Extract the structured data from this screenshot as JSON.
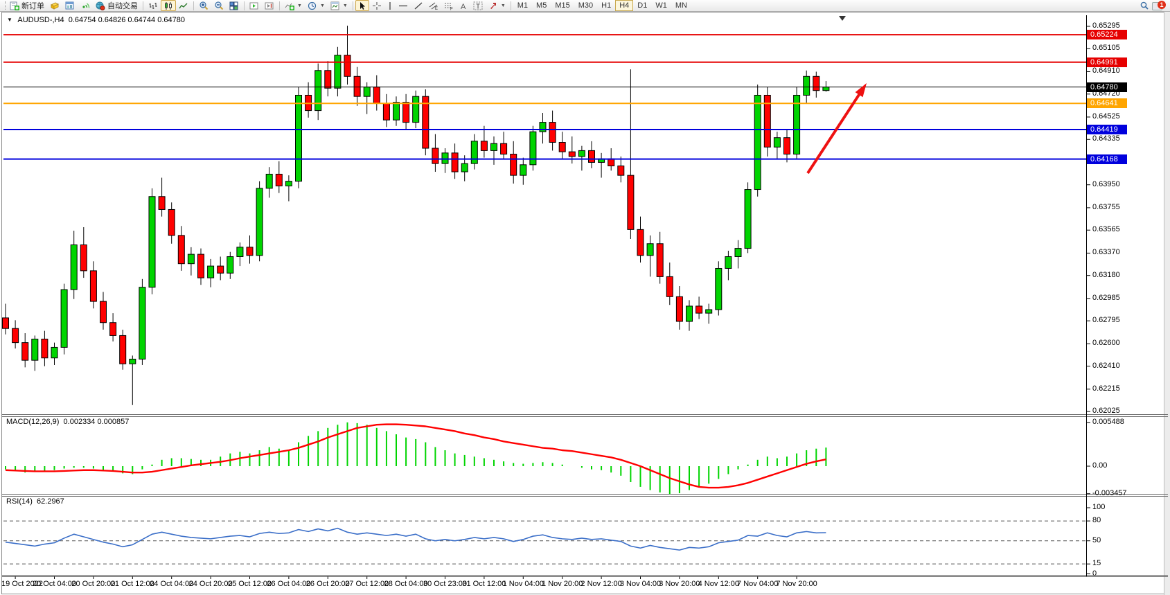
{
  "toolbar": {
    "new_order_label": "新订单",
    "autotrading_label": "自动交易",
    "timeframes": [
      "M1",
      "M5",
      "M15",
      "M30",
      "H1",
      "H4",
      "D1",
      "W1",
      "MN"
    ],
    "active_timeframe": "H4",
    "notification_count": "1"
  },
  "title": {
    "symbol": "AUDUSD-,H4",
    "open": "0.64754",
    "high": "0.64826",
    "low": "0.64744",
    "close": "0.64780"
  },
  "price_axis": {
    "ticks": [
      "0.65295",
      "0.65105",
      "0.64910",
      "0.64720",
      "0.64525",
      "0.64335",
      "0.64140",
      "0.63950",
      "0.63755",
      "0.63565",
      "0.63370",
      "0.63180",
      "0.62985",
      "0.62795",
      "0.62600",
      "0.62410",
      "0.62215",
      "0.62025"
    ]
  },
  "time_axis": {
    "labels": [
      "19 Oct 2022",
      "20 Oct 04:00",
      "20 Oct 20:00",
      "21 Oct 12:00",
      "24 Oct 04:00",
      "24 Oct 20:00",
      "25 Oct 12:00",
      "26 Oct 04:00",
      "26 Oct 20:00",
      "27 Oct 12:00",
      "28 Oct 04:00",
      "30 Oct 23:00",
      "31 Oct 12:00",
      "1 Nov 04:00",
      "1 Nov 20:00",
      "2 Nov 12:00",
      "3 Nov 04:00",
      "3 Nov 20:00",
      "4 Nov 12:00",
      "7 Nov 04:00",
      "7 Nov 20:00"
    ]
  },
  "hlines": [
    {
      "price": 0.65224,
      "label": "0.65224",
      "color": "#e60000",
      "width": 2
    },
    {
      "price": 0.64991,
      "label": "0.64991",
      "color": "#e60000",
      "width": 2
    },
    {
      "price": 0.64641,
      "label": "0.64641",
      "color": "#ffa500",
      "width": 2
    },
    {
      "price": 0.64419,
      "label": "0.64419",
      "color": "#0000dd",
      "width": 2
    },
    {
      "price": 0.64168,
      "label": "0.64168",
      "color": "#0000dd",
      "width": 2
    }
  ],
  "current_price": {
    "value": 0.6478,
    "label": "0.64780",
    "color": "#000000"
  },
  "macd": {
    "label": "MACD(12,26,9)",
    "values_text": "0.002334 0.000857",
    "axis_labels": [
      "0.005488",
      "0.00",
      "-0.003457"
    ]
  },
  "rsi": {
    "label": "RSI(14)",
    "value_text": "62.2967",
    "axis_labels": [
      "100",
      "80",
      "50",
      "15",
      "0"
    ],
    "levels": [
      80,
      50,
      15
    ]
  },
  "annotation_arrow": {
    "color": "#ee1111"
  },
  "chart_data": [
    {
      "type": "candlestick",
      "symbol": "AUDUSD",
      "timeframe": "H4",
      "title": "AUDUSD-,H4",
      "x_start": "19 Oct 2022 00:00",
      "ylim": [
        0.62025,
        0.65295
      ],
      "up_color": "#00d400",
      "down_color": "#ff0000",
      "outline_color": "#000000",
      "candles": [
        [
          0.6282,
          0.6294,
          0.6268,
          0.6273
        ],
        [
          0.6273,
          0.628,
          0.6256,
          0.6261
        ],
        [
          0.6261,
          0.6269,
          0.624,
          0.6246
        ],
        [
          0.6246,
          0.6267,
          0.6237,
          0.6264
        ],
        [
          0.6264,
          0.6271,
          0.6241,
          0.6248
        ],
        [
          0.6248,
          0.6261,
          0.6242,
          0.6257
        ],
        [
          0.6257,
          0.6311,
          0.6251,
          0.6306
        ],
        [
          0.6306,
          0.6356,
          0.6298,
          0.6344
        ],
        [
          0.6344,
          0.6359,
          0.6316,
          0.6322
        ],
        [
          0.6322,
          0.633,
          0.629,
          0.6296
        ],
        [
          0.6296,
          0.6304,
          0.6272,
          0.6278
        ],
        [
          0.6278,
          0.6286,
          0.6262,
          0.6267
        ],
        [
          0.6267,
          0.6272,
          0.6238,
          0.6243
        ],
        [
          0.6243,
          0.625,
          0.6208,
          0.6247
        ],
        [
          0.6247,
          0.6315,
          0.6242,
          0.6308
        ],
        [
          0.6308,
          0.6392,
          0.6302,
          0.6385
        ],
        [
          0.6385,
          0.6401,
          0.6368,
          0.6374
        ],
        [
          0.6374,
          0.638,
          0.6345,
          0.6352
        ],
        [
          0.6352,
          0.636,
          0.6322,
          0.6328
        ],
        [
          0.6328,
          0.6342,
          0.6318,
          0.6336
        ],
        [
          0.6336,
          0.6341,
          0.631,
          0.6316
        ],
        [
          0.6316,
          0.6332,
          0.6308,
          0.6326
        ],
        [
          0.6326,
          0.6334,
          0.6314,
          0.632
        ],
        [
          0.632,
          0.6338,
          0.6315,
          0.6334
        ],
        [
          0.6334,
          0.6346,
          0.6326,
          0.6342
        ],
        [
          0.6342,
          0.6352,
          0.6328,
          0.6335
        ],
        [
          0.6335,
          0.6398,
          0.633,
          0.6392
        ],
        [
          0.6392,
          0.641,
          0.6384,
          0.6404
        ],
        [
          0.6404,
          0.6415,
          0.6388,
          0.6394
        ],
        [
          0.6394,
          0.6403,
          0.6381,
          0.6398
        ],
        [
          0.6398,
          0.6478,
          0.6392,
          0.6471
        ],
        [
          0.6471,
          0.6482,
          0.6452,
          0.6458
        ],
        [
          0.6458,
          0.6498,
          0.645,
          0.6492
        ],
        [
          0.6492,
          0.65,
          0.647,
          0.6477
        ],
        [
          0.6477,
          0.6512,
          0.647,
          0.6505
        ],
        [
          0.6505,
          0.653,
          0.648,
          0.6487
        ],
        [
          0.6487,
          0.6495,
          0.6462,
          0.647
        ],
        [
          0.647,
          0.6482,
          0.6455,
          0.6478
        ],
        [
          0.6478,
          0.6488,
          0.6458,
          0.6464
        ],
        [
          0.6464,
          0.6472,
          0.6444,
          0.645
        ],
        [
          0.645,
          0.647,
          0.6445,
          0.6465
        ],
        [
          0.6465,
          0.6472,
          0.6442,
          0.6448
        ],
        [
          0.6448,
          0.6475,
          0.6443,
          0.647
        ],
        [
          0.647,
          0.6476,
          0.642,
          0.6426
        ],
        [
          0.6426,
          0.6438,
          0.6406,
          0.6413
        ],
        [
          0.6413,
          0.6426,
          0.6405,
          0.6422
        ],
        [
          0.6422,
          0.643,
          0.64,
          0.6406
        ],
        [
          0.6406,
          0.642,
          0.6398,
          0.6413
        ],
        [
          0.6413,
          0.6438,
          0.6408,
          0.6432
        ],
        [
          0.6432,
          0.6445,
          0.6418,
          0.6424
        ],
        [
          0.6424,
          0.6436,
          0.6412,
          0.643
        ],
        [
          0.643,
          0.644,
          0.6417,
          0.6421
        ],
        [
          0.6421,
          0.6432,
          0.6396,
          0.6403
        ],
        [
          0.6403,
          0.6418,
          0.6395,
          0.6412
        ],
        [
          0.6412,
          0.6445,
          0.6407,
          0.644
        ],
        [
          0.644,
          0.6456,
          0.643,
          0.6448
        ],
        [
          0.6448,
          0.6458,
          0.6424,
          0.6431
        ],
        [
          0.6431,
          0.644,
          0.6417,
          0.6423
        ],
        [
          0.6423,
          0.6436,
          0.6413,
          0.6419
        ],
        [
          0.6419,
          0.6428,
          0.6407,
          0.6424
        ],
        [
          0.6424,
          0.6432,
          0.6409,
          0.6414
        ],
        [
          0.6414,
          0.6422,
          0.6401,
          0.6417
        ],
        [
          0.6417,
          0.6426,
          0.6407,
          0.6411
        ],
        [
          0.6411,
          0.6419,
          0.6397,
          0.6403
        ],
        [
          0.6403,
          0.6493,
          0.6349,
          0.6357
        ],
        [
          0.6357,
          0.6368,
          0.6329,
          0.6335
        ],
        [
          0.6335,
          0.6352,
          0.6317,
          0.6345
        ],
        [
          0.6345,
          0.6355,
          0.6311,
          0.6317
        ],
        [
          0.6317,
          0.6329,
          0.6293,
          0.63
        ],
        [
          0.63,
          0.6309,
          0.6272,
          0.6279
        ],
        [
          0.6279,
          0.6297,
          0.6271,
          0.6292
        ],
        [
          0.6292,
          0.63,
          0.6281,
          0.6286
        ],
        [
          0.6286,
          0.6294,
          0.6277,
          0.6289
        ],
        [
          0.6289,
          0.633,
          0.6284,
          0.6324
        ],
        [
          0.6324,
          0.6339,
          0.6314,
          0.6334
        ],
        [
          0.6334,
          0.6348,
          0.6324,
          0.6341
        ],
        [
          0.6341,
          0.6397,
          0.6337,
          0.6391
        ],
        [
          0.6391,
          0.648,
          0.6385,
          0.6471
        ],
        [
          0.6471,
          0.6478,
          0.6419,
          0.6427
        ],
        [
          0.6427,
          0.644,
          0.6417,
          0.6435
        ],
        [
          0.6435,
          0.6442,
          0.6414,
          0.6421
        ],
        [
          0.6421,
          0.6478,
          0.6417,
          0.6471
        ],
        [
          0.6471,
          0.6492,
          0.6464,
          0.6487
        ],
        [
          0.6487,
          0.6491,
          0.6469,
          0.6475
        ],
        [
          0.6475,
          0.6483,
          0.6474,
          0.6478
        ]
      ]
    },
    {
      "type": "bar",
      "name": "MACD(12,26,9) histogram",
      "color": "#00d400",
      "ylim": [
        -0.003457,
        0.005488
      ],
      "values": [
        -0.0004,
        -0.0006,
        -0.0008,
        -0.0007,
        -0.0006,
        -0.0005,
        -0.0003,
        -0.0002,
        -0.0002,
        -0.0003,
        -0.0005,
        -0.0006,
        -0.0009,
        -0.001,
        -0.0004,
        0.0002,
        0.0008,
        0.001,
        0.001,
        0.0009,
        0.0008,
        0.0008,
        0.0012,
        0.0016,
        0.0018,
        0.0016,
        0.002,
        0.0024,
        0.0022,
        0.002,
        0.003,
        0.0038,
        0.0044,
        0.0048,
        0.0052,
        0.0055,
        0.0054,
        0.0052,
        0.0048,
        0.0044,
        0.004,
        0.0036,
        0.0034,
        0.003,
        0.0024,
        0.002,
        0.0016,
        0.0014,
        0.0012,
        0.001,
        0.0008,
        0.0006,
        0.0004,
        0.0003,
        0.0004,
        0.0005,
        0.0004,
        0.0002,
        0.0,
        -0.0002,
        -0.0004,
        -0.0005,
        -0.0008,
        -0.0012,
        -0.002,
        -0.0026,
        -0.003,
        -0.0033,
        -0.0035,
        -0.0034,
        -0.003,
        -0.0026,
        -0.0022,
        -0.0016,
        -0.001,
        -0.0004,
        0.0002,
        0.0008,
        0.0012,
        0.001,
        0.0012,
        0.0016,
        0.002,
        0.0022,
        0.002334
      ],
      "signal": {
        "name": "MACD signal",
        "color": "#ff0000",
        "values": [
          -0.0005,
          -0.00055,
          -0.0006,
          -0.00065,
          -0.00065,
          -0.00065,
          -0.0006,
          -0.00055,
          -0.0005,
          -0.0005,
          -0.00055,
          -0.0006,
          -0.0007,
          -0.0008,
          -0.0008,
          -0.0007,
          -0.0005,
          -0.0003,
          -0.0001,
          0.0001,
          0.00025,
          0.0004,
          0.00055,
          0.00075,
          0.001,
          0.0012,
          0.0014,
          0.0016,
          0.0018,
          0.002,
          0.0023,
          0.0027,
          0.0031,
          0.0036,
          0.004,
          0.0044,
          0.0048,
          0.005,
          0.0052,
          0.00525,
          0.00525,
          0.0052,
          0.0051,
          0.005,
          0.0048,
          0.0046,
          0.0044,
          0.0041,
          0.0039,
          0.0036,
          0.0034,
          0.0031,
          0.0029,
          0.0027,
          0.0025,
          0.0023,
          0.0022,
          0.002,
          0.0019,
          0.0017,
          0.0015,
          0.0013,
          0.0011,
          0.0008,
          0.0004,
          0.0,
          -0.0005,
          -0.001,
          -0.0015,
          -0.0019,
          -0.0023,
          -0.0026,
          -0.0027,
          -0.0027,
          -0.0026,
          -0.0024,
          -0.0021,
          -0.0017,
          -0.0013,
          -0.0009,
          -0.0005,
          -0.0001,
          0.0003,
          0.0006,
          0.000857
        ]
      }
    },
    {
      "type": "line",
      "name": "RSI(14)",
      "color": "#3a6ec8",
      "ylim": [
        0,
        100
      ],
      "levels": [
        80,
        50,
        15
      ],
      "values": [
        48,
        46,
        44,
        42,
        45,
        47,
        54,
        60,
        56,
        52,
        48,
        45,
        41,
        44,
        52,
        60,
        63,
        60,
        57,
        55,
        54,
        53,
        55,
        57,
        58,
        56,
        61,
        63,
        61,
        62,
        67,
        64,
        68,
        65,
        69,
        63,
        60,
        62,
        60,
        58,
        60,
        57,
        60,
        53,
        50,
        52,
        50,
        52,
        55,
        53,
        55,
        53,
        49,
        52,
        57,
        59,
        55,
        53,
        52,
        54,
        52,
        53,
        51,
        49,
        42,
        39,
        43,
        40,
        38,
        36,
        40,
        39,
        41,
        47,
        49,
        51,
        58,
        57,
        62,
        58,
        56,
        62,
        64,
        62,
        62.3
      ]
    }
  ]
}
